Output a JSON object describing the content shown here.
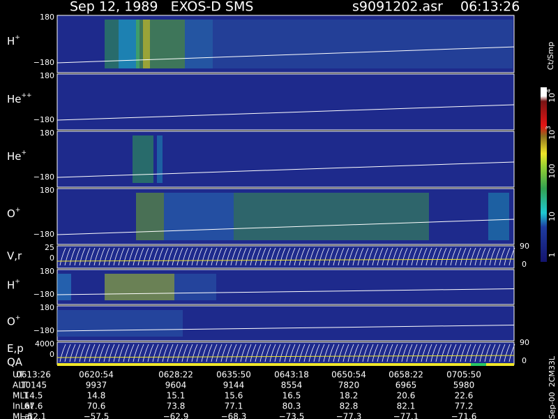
{
  "header": {
    "title": "Sep 12, 1989   EXOS-D SMS",
    "file": "s9091202.asr",
    "time": "06:13:26"
  },
  "panels": [
    {
      "label": "H",
      "sup": "+",
      "top": "180",
      "bottom": "−180"
    },
    {
      "label": "He",
      "sup": "++",
      "top": "180",
      "bottom": "−180"
    },
    {
      "label": "He",
      "sup": "+",
      "top": "180",
      "bottom": "−180"
    },
    {
      "label": "O",
      "sup": "+",
      "top": "180",
      "bottom": "−180"
    },
    {
      "label": "V,r",
      "top": "25",
      "bottom": "0",
      "right_top": "90",
      "right_bottom": "0"
    },
    {
      "label": "H",
      "sup": "+",
      "top": "180",
      "bottom": "−180"
    },
    {
      "label": "O",
      "sup": "+",
      "top": "180",
      "bottom": "−180"
    },
    {
      "label": "E,p",
      "label2": "QA",
      "top": "4000",
      "bottom": "0",
      "right_top": "90",
      "right_bottom": "0"
    }
  ],
  "colorbar": {
    "unit": "Ct/Smp",
    "ticks": [
      {
        "base": "10",
        "sup": "4"
      },
      {
        "base": "10",
        "sup": "3"
      },
      {
        "base": "100"
      },
      {
        "base": "10"
      },
      {
        "base": "1"
      }
    ]
  },
  "footer_code": "Sep-00  2CM33L",
  "table": {
    "rows": [
      {
        "name": "UT",
        "values": [
          "0613:26",
          "0620:54",
          "0628:22",
          "0635:50",
          "0643:18",
          "0650:54",
          "0658:22",
          "0705:50"
        ]
      },
      {
        "name": "ALT",
        "values": [
          "10145",
          "9937",
          "9604",
          "9144",
          "8554",
          "7820",
          "6965",
          "5980"
        ]
      },
      {
        "name": "MLT",
        "values": [
          "14.5",
          "14.8",
          "15.1",
          "15.6",
          "16.5",
          "18.2",
          "20.6",
          "22.6"
        ]
      },
      {
        "name": "InLat",
        "values": [
          "67.6",
          "70.6",
          "73.8",
          "77.1",
          "80.3",
          "82.8",
          "82.1",
          "77.2"
        ]
      },
      {
        "name": "MLat",
        "values": [
          "−52.1",
          "−57.5",
          "−62.9",
          "−68.3",
          "−73.5",
          "−77.3",
          "−77.1",
          "−71.6"
        ]
      }
    ]
  }
}
